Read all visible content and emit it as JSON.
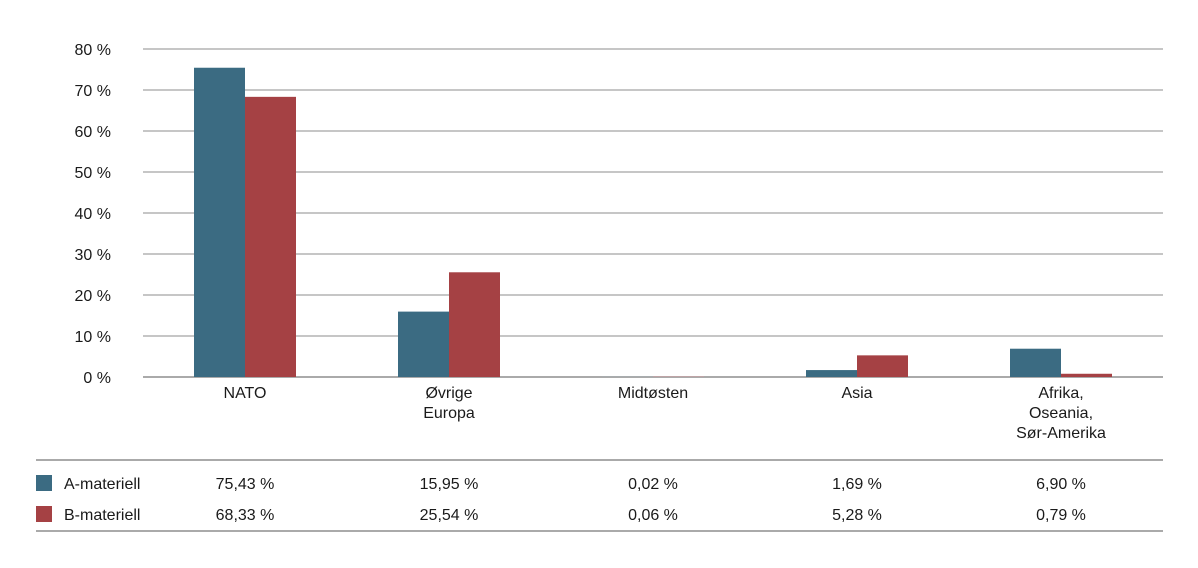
{
  "chart_data": {
    "type": "bar",
    "categories": [
      [
        "NATO"
      ],
      [
        "Øvrige",
        "Europa"
      ],
      [
        "Midtøsten"
      ],
      [
        "Asia"
      ],
      [
        "Afrika,",
        "Oseania,",
        "Sør-Amerika"
      ]
    ],
    "series": [
      {
        "name": "A-materiell",
        "values": [
          75.43,
          15.95,
          0.02,
          1.69,
          6.9
        ],
        "labels": [
          "75,43 %",
          "15,95 %",
          "0,02 %",
          "1,69 %",
          "6,90 %"
        ],
        "color": "#3b6b82"
      },
      {
        "name": "B-materiell",
        "values": [
          68.33,
          25.54,
          0.06,
          5.28,
          0.79
        ],
        "labels": [
          "68,33 %",
          "25,54 %",
          "0,06 %",
          "5,28 %",
          "0,79 %"
        ],
        "color": "#a54144"
      }
    ],
    "yticks": [
      {
        "value": 0,
        "label": "0 %"
      },
      {
        "value": 10,
        "label": "10 %"
      },
      {
        "value": 20,
        "label": "20 %"
      },
      {
        "value": 30,
        "label": "30 %"
      },
      {
        "value": 40,
        "label": "40 %"
      },
      {
        "value": 50,
        "label": "50 %"
      },
      {
        "value": 60,
        "label": "60 %"
      },
      {
        "value": 70,
        "label": "70 %"
      },
      {
        "value": 80,
        "label": "80 %"
      }
    ],
    "ylim": [
      0,
      80
    ],
    "grid": true,
    "legend": "data table below chart",
    "colors": {
      "grid": "#8c8c8c",
      "axis": "#555555"
    }
  }
}
